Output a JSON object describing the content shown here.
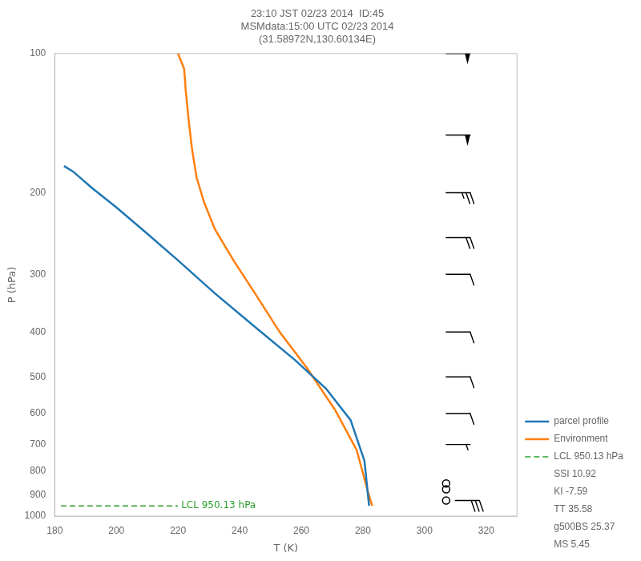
{
  "chart_data": {
    "type": "line",
    "title": [
      "23:10 JST 02/23 2014  ID:45",
      "MSMdata:15:00 UTC 02/23 2014",
      "(31.58972N,130.60134E)"
    ],
    "xlabel": "T (K)",
    "ylabel": "P (hPa)",
    "xlim": [
      180,
      330
    ],
    "xticks": [
      180,
      200,
      220,
      240,
      260,
      280,
      300,
      320
    ],
    "ylim": [
      1000,
      100
    ],
    "yticks": [
      100,
      200,
      300,
      400,
      500,
      600,
      700,
      800,
      900,
      1000
    ],
    "log": "y",
    "grid": false,
    "legend": "lower right",
    "series": [
      {
        "name": "parcel profile",
        "color": "#1f77b4",
        "line_style": "solid",
        "x": [
          183.0,
          186.0,
          192.0,
          200.0,
          210.0,
          220.0,
          232.0,
          245.0,
          258.0,
          268.0,
          276.0,
          280.5,
          282.0
        ],
        "values": [
          175,
          180,
          195,
          215,
          245,
          280,
          330,
          390,
          460,
          530,
          620,
          760,
          950
        ]
      },
      {
        "name": "Environment",
        "color": "#ff7f0e",
        "line_style": "solid",
        "x": [
          220.0,
          222.0,
          222.5,
          223.5,
          224.5,
          226.0,
          228.5,
          232.0,
          238.0,
          245.0,
          253.0,
          262.0,
          271.0,
          278.0,
          281.5,
          283.0
        ],
        "values": [
          100,
          108,
          120,
          140,
          160,
          185,
          210,
          240,
          280,
          330,
          400,
          480,
          590,
          720,
          880,
          950
        ]
      },
      {
        "name": "LCL 950.13 hPa",
        "color": "#2ca02c",
        "line_style": "dashed",
        "x": [
          182,
          220
        ],
        "values": [
          950.13,
          950.13
        ]
      }
    ],
    "legend_extras": [
      "SSI 10.92",
      "KI -7.59",
      "TT 35.58",
      "g500BS 25.37",
      "MS 5.45"
    ],
    "annotations": [
      {
        "text": "LCL 950.13 hPa",
        "x": 220,
        "y": 950.13,
        "color": "#2ca02c"
      }
    ],
    "wind_barbs": [
      {
        "x": 307,
        "y": 100,
        "u": -50,
        "v": 0
      },
      {
        "x": 307,
        "y": 150,
        "u": -48,
        "v": 0
      },
      {
        "x": 307,
        "y": 200,
        "u": -25,
        "v": 0
      },
      {
        "x": 307,
        "y": 250,
        "u": -20,
        "v": 0
      },
      {
        "x": 307,
        "y": 300,
        "u": -10,
        "v": 0
      },
      {
        "x": 307,
        "y": 400,
        "u": -12,
        "v": 0
      },
      {
        "x": 307,
        "y": 500,
        "u": -10,
        "v": 0
      },
      {
        "x": 307,
        "y": 600,
        "u": -8,
        "v": 0
      },
      {
        "x": 307,
        "y": 700,
        "u": -5,
        "v": 0
      },
      {
        "x": 310,
        "y": 925,
        "u": -28,
        "v": 0
      }
    ],
    "calm_points": {
      "x": 307,
      "values": [
        850,
        875,
        925
      ]
    }
  }
}
